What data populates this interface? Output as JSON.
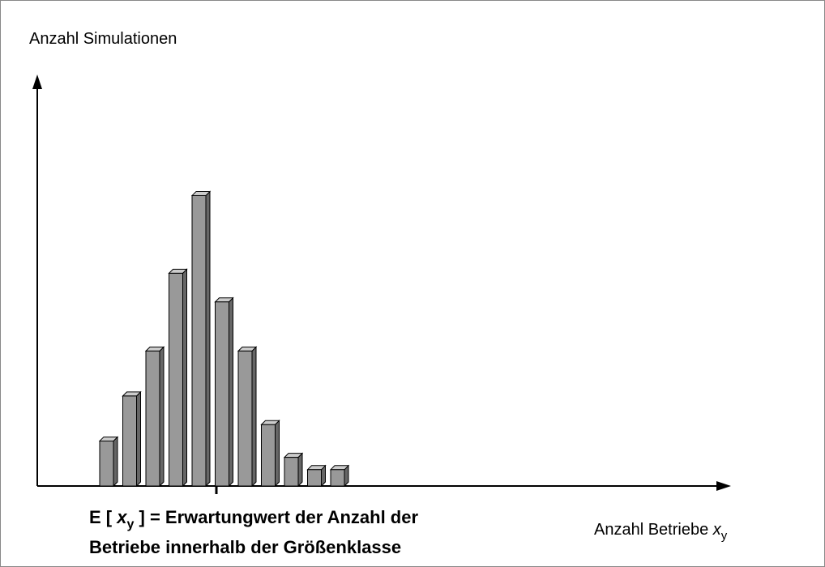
{
  "chart_data": {
    "type": "bar",
    "y_label": "Anzahl Simulationen",
    "x_label": {
      "text": "Anzahl Betriebe ",
      "var": "x",
      "sub": "y"
    },
    "annotation": {
      "pre": "E [ ",
      "var": "x",
      "sub": "y",
      "post": " ] = Erwartungwert der Anzahl der",
      "line2": "Betriebe innerhalb der Größenklasse"
    },
    "categories": [
      null,
      null,
      null,
      null,
      null,
      null,
      null,
      null,
      null,
      null,
      null
    ],
    "values": [
      11,
      22,
      33,
      52,
      71,
      45,
      33,
      15,
      7,
      4,
      4
    ],
    "ylim": [
      0,
      100
    ],
    "color": "#999999"
  }
}
